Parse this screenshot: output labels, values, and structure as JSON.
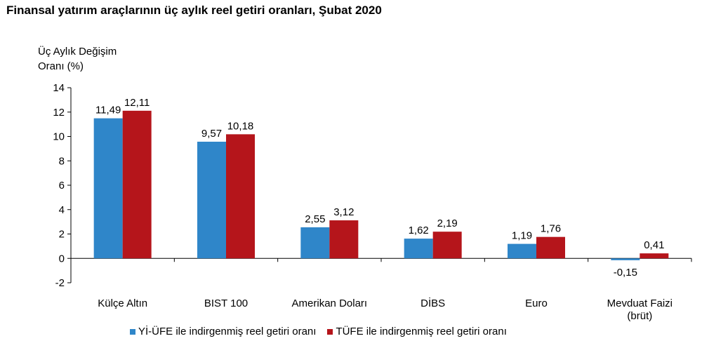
{
  "chart_data": {
    "type": "bar",
    "title": "Finansal yatırım araçlarının üç aylık reel getiri oranları, Şubat 2020",
    "ylabel_lines": [
      "Üç Aylık Değişim",
      "Oranı (%)"
    ],
    "categories": [
      [
        "Külçe Altın"
      ],
      [
        "BIST 100"
      ],
      [
        "Amerikan Doları"
      ],
      [
        "DİBS"
      ],
      [
        "Euro"
      ],
      [
        "Mevduat Faizi",
        "(brüt)"
      ]
    ],
    "series": [
      {
        "name": "Yİ-ÜFE ile indirgenmiş reel getiri oranı",
        "color": "#2F86C9",
        "values": [
          11.49,
          9.57,
          2.55,
          1.62,
          1.19,
          -0.15
        ],
        "labels": [
          "11,49",
          "9,57",
          "2,55",
          "1,62",
          "1,19",
          "-0,15"
        ]
      },
      {
        "name": "TÜFE ile indirgenmiş reel getiri oranı",
        "color": "#B5151B",
        "values": [
          12.11,
          10.18,
          3.12,
          2.19,
          1.76,
          0.41
        ],
        "labels": [
          "12,11",
          "10,18",
          "3,12",
          "2,19",
          "1,76",
          "0,41"
        ]
      }
    ],
    "ylim": [
      -2,
      14
    ],
    "yticks": [
      -2,
      0,
      2,
      4,
      6,
      8,
      10,
      12,
      14
    ],
    "grid": false,
    "legend_position": "bottom"
  }
}
